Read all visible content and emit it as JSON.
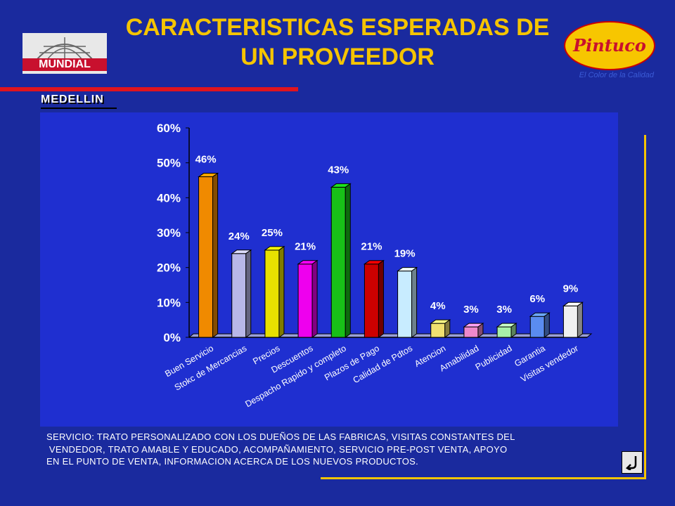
{
  "title_line1": "CARACTERISTICAS ESPERADAS DE",
  "title_line2": "UN PROVEEDOR",
  "logo_left_text": "MUNDIAL",
  "logo_right_text": "Pintuco",
  "logo_right_tagline": "El Color de la Calidad",
  "city": "MEDELLIN",
  "note_lines": [
    "SERVICIO: TRATO PERSONALIZADO CON LOS DUEÑOS DE LAS FABRICAS, VISITAS CONSTANTES DEL",
    " VENDEDOR, TRATO AMABLE Y EDUCADO, ACOMPAÑAMIENTO, SERVICIO PRE-POST VENTA, APOYO",
    "EN EL PUNTO DE VENTA, INFORMACION ACERCA DE LOS NUEVOS PRODUCTOS."
  ],
  "return_icon": "return-arrow-icon",
  "colors": {
    "background": "#1a2a9e",
    "title": "#f5c400",
    "plot": "#1f2fd0",
    "rule": "#e0141e"
  },
  "chart_data": {
    "type": "bar",
    "categories": [
      "Buen Servicio",
      "Stokc de Mercancias",
      "Precios",
      "Descuentos",
      "Despacho Rapido y completo",
      "Plazos de Pago",
      "Calidad de Pdtos",
      "Atencion",
      "Amabilidad",
      "Publicidad",
      "Garantia",
      "Visitas vendedor"
    ],
    "values": [
      46,
      24,
      25,
      21,
      43,
      21,
      19,
      4,
      3,
      3,
      6,
      9
    ],
    "data_labels": [
      "46%",
      "24%",
      "25%",
      "21%",
      "43%",
      "21%",
      "19%",
      "4%",
      "3%",
      "3%",
      "6%",
      "9%"
    ],
    "bar_colors": [
      "#f08a00",
      "#b8b8e8",
      "#e8e000",
      "#ee00ee",
      "#18c018",
      "#cc0000",
      "#c8ecff",
      "#f0e070",
      "#ee88cc",
      "#a8f0a8",
      "#5a8cf0",
      "#f0f0f0"
    ],
    "yticks": [
      "0%",
      "10%",
      "20%",
      "30%",
      "40%",
      "50%",
      "60%"
    ],
    "ylim": [
      0,
      60
    ],
    "grid": false,
    "legend": false
  }
}
